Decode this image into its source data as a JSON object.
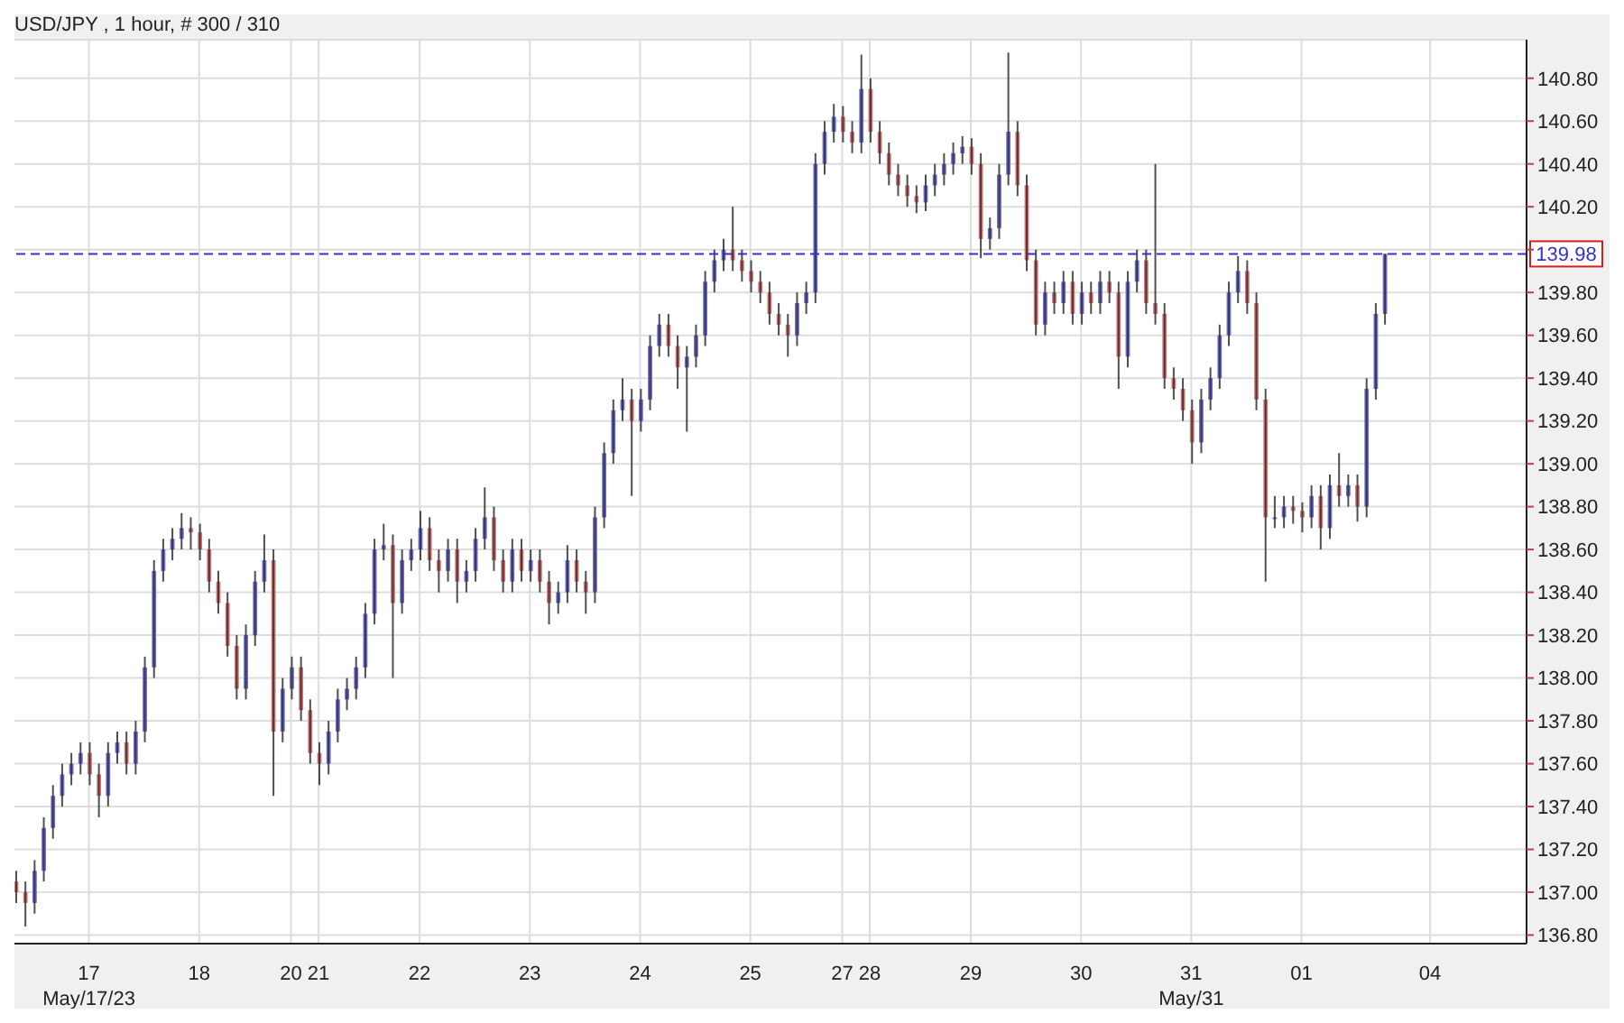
{
  "chart_data": {
    "type": "candlestick",
    "title": "USD/JPY , 1 hour, # 300 / 310",
    "categories": [
      null,
      null,
      null,
      null,
      null,
      null,
      null,
      null,
      "17",
      null,
      null,
      null,
      null,
      null,
      null,
      null,
      null,
      null,
      null,
      null,
      "18",
      null,
      null,
      null,
      null,
      null,
      null,
      null,
      null,
      null,
      "20",
      null,
      null,
      "21",
      null,
      null,
      null,
      null,
      null,
      null,
      null,
      null,
      null,
      null,
      "22",
      null,
      null,
      null,
      null,
      null,
      null,
      null,
      null,
      null,
      null,
      null,
      "23",
      null,
      null,
      null,
      null,
      null,
      null,
      null,
      null,
      null,
      null,
      null,
      "24",
      null,
      null,
      null,
      null,
      null,
      null,
      null,
      null,
      null,
      null,
      null,
      "25",
      null,
      null,
      null,
      null,
      null,
      null,
      null,
      null,
      null,
      "27",
      null,
      null,
      "28",
      null,
      null,
      null,
      null,
      null,
      null,
      null,
      null,
      null,
      null,
      "29",
      null,
      null,
      null,
      null,
      null,
      null,
      null,
      null,
      null,
      null,
      null,
      "30",
      null,
      null,
      null,
      null,
      null,
      null,
      null,
      null,
      null,
      null,
      null,
      "31",
      null,
      null,
      null,
      null,
      null,
      null,
      null,
      null,
      null,
      null,
      null,
      "01",
      null,
      null,
      null,
      null,
      null,
      null,
      null,
      null,
      null,
      null,
      null,
      null,
      null,
      "04",
      null,
      null,
      null,
      null,
      null,
      null,
      null,
      null,
      null,
      null
    ],
    "ohlc": [
      [
        137.05,
        137.1,
        136.95,
        137.0
      ],
      [
        137.0,
        137.05,
        136.84,
        136.95
      ],
      [
        136.95,
        137.15,
        136.9,
        137.1
      ],
      [
        137.1,
        137.35,
        137.05,
        137.3
      ],
      [
        137.3,
        137.5,
        137.25,
        137.45
      ],
      [
        137.45,
        137.6,
        137.4,
        137.55
      ],
      [
        137.55,
        137.65,
        137.5,
        137.6
      ],
      [
        137.6,
        137.7,
        137.55,
        137.65
      ],
      [
        137.65,
        137.7,
        137.5,
        137.55
      ],
      [
        137.55,
        137.6,
        137.35,
        137.45
      ],
      [
        137.45,
        137.7,
        137.4,
        137.65
      ],
      [
        137.65,
        137.75,
        137.6,
        137.7
      ],
      [
        137.7,
        137.75,
        137.55,
        137.6
      ],
      [
        137.6,
        137.8,
        137.55,
        137.75
      ],
      [
        137.75,
        138.1,
        137.7,
        138.05
      ],
      [
        138.05,
        138.55,
        138.0,
        138.5
      ],
      [
        138.5,
        138.65,
        138.45,
        138.6
      ],
      [
        138.6,
        138.7,
        138.55,
        138.65
      ],
      [
        138.65,
        138.77,
        138.6,
        138.7
      ],
      [
        138.7,
        138.75,
        138.6,
        138.68
      ],
      [
        138.68,
        138.72,
        138.55,
        138.6
      ],
      [
        138.6,
        138.65,
        138.4,
        138.45
      ],
      [
        138.45,
        138.5,
        138.3,
        138.35
      ],
      [
        138.35,
        138.4,
        138.1,
        138.15
      ],
      [
        138.15,
        138.2,
        137.9,
        137.95
      ],
      [
        137.95,
        138.25,
        137.9,
        138.2
      ],
      [
        138.2,
        138.5,
        138.15,
        138.45
      ],
      [
        138.45,
        138.67,
        138.4,
        138.55
      ],
      [
        138.55,
        138.6,
        137.45,
        137.75
      ],
      [
        137.75,
        138.0,
        137.7,
        137.95
      ],
      [
        137.95,
        138.1,
        137.9,
        138.05
      ],
      [
        138.05,
        138.1,
        137.8,
        137.85
      ],
      [
        137.85,
        137.9,
        137.6,
        137.65
      ],
      [
        137.65,
        137.7,
        137.5,
        137.6
      ],
      [
        137.6,
        137.8,
        137.55,
        137.75
      ],
      [
        137.75,
        137.95,
        137.7,
        137.9
      ],
      [
        137.9,
        138.0,
        137.85,
        137.95
      ],
      [
        137.95,
        138.1,
        137.9,
        138.05
      ],
      [
        138.05,
        138.35,
        138.0,
        138.3
      ],
      [
        138.3,
        138.65,
        138.25,
        138.6
      ],
      [
        138.6,
        138.72,
        138.55,
        138.62
      ],
      [
        138.62,
        138.67,
        138.0,
        138.35
      ],
      [
        138.35,
        138.6,
        138.3,
        138.55
      ],
      [
        138.55,
        138.65,
        138.5,
        138.6
      ],
      [
        138.6,
        138.78,
        138.55,
        138.7
      ],
      [
        138.7,
        138.75,
        138.5,
        138.55
      ],
      [
        138.55,
        138.6,
        138.4,
        138.5
      ],
      [
        138.5,
        138.65,
        138.45,
        138.6
      ],
      [
        138.6,
        138.65,
        138.35,
        138.45
      ],
      [
        138.45,
        138.55,
        138.4,
        138.5
      ],
      [
        138.5,
        138.7,
        138.45,
        138.65
      ],
      [
        138.65,
        138.89,
        138.6,
        138.75
      ],
      [
        138.75,
        138.8,
        138.5,
        138.55
      ],
      [
        138.55,
        138.6,
        138.4,
        138.45
      ],
      [
        138.45,
        138.65,
        138.4,
        138.6
      ],
      [
        138.6,
        138.65,
        138.45,
        138.5
      ],
      [
        138.5,
        138.6,
        138.45,
        138.55
      ],
      [
        138.55,
        138.6,
        138.4,
        138.45
      ],
      [
        138.45,
        138.5,
        138.25,
        138.35
      ],
      [
        138.35,
        138.45,
        138.3,
        138.4
      ],
      [
        138.4,
        138.62,
        138.35,
        138.55
      ],
      [
        138.55,
        138.6,
        138.4,
        138.45
      ],
      [
        138.45,
        138.5,
        138.3,
        138.4
      ],
      [
        138.4,
        138.8,
        138.35,
        138.75
      ],
      [
        138.75,
        139.1,
        138.7,
        139.05
      ],
      [
        139.05,
        139.3,
        139.0,
        139.25
      ],
      [
        139.25,
        139.4,
        139.2,
        139.3
      ],
      [
        139.3,
        139.35,
        138.85,
        139.2
      ],
      [
        139.2,
        139.35,
        139.15,
        139.3
      ],
      [
        139.3,
        139.6,
        139.25,
        139.55
      ],
      [
        139.55,
        139.7,
        139.5,
        139.65
      ],
      [
        139.65,
        139.7,
        139.5,
        139.55
      ],
      [
        139.55,
        139.6,
        139.35,
        139.45
      ],
      [
        139.45,
        139.55,
        139.15,
        139.5
      ],
      [
        139.5,
        139.65,
        139.45,
        139.6
      ],
      [
        139.6,
        139.9,
        139.55,
        139.85
      ],
      [
        139.85,
        140.0,
        139.8,
        139.95
      ],
      [
        139.95,
        140.05,
        139.9,
        140.0
      ],
      [
        140.0,
        140.2,
        139.9,
        139.95
      ],
      [
        139.95,
        140.0,
        139.85,
        139.9
      ],
      [
        139.9,
        139.95,
        139.8,
        139.85
      ],
      [
        139.85,
        139.9,
        139.75,
        139.8
      ],
      [
        139.8,
        139.85,
        139.65,
        139.7
      ],
      [
        139.7,
        139.75,
        139.6,
        139.65
      ],
      [
        139.65,
        139.7,
        139.5,
        139.6
      ],
      [
        139.6,
        139.8,
        139.55,
        139.75
      ],
      [
        139.75,
        139.85,
        139.7,
        139.8
      ],
      [
        139.8,
        140.45,
        139.75,
        140.4
      ],
      [
        140.4,
        140.6,
        140.35,
        140.55
      ],
      [
        140.55,
        140.68,
        140.5,
        140.62
      ],
      [
        140.62,
        140.67,
        140.5,
        140.55
      ],
      [
        140.55,
        140.6,
        140.45,
        140.5
      ],
      [
        140.5,
        140.91,
        140.45,
        140.75
      ],
      [
        140.75,
        140.8,
        140.5,
        140.55
      ],
      [
        140.55,
        140.6,
        140.4,
        140.45
      ],
      [
        140.45,
        140.5,
        140.3,
        140.35
      ],
      [
        140.35,
        140.4,
        140.25,
        140.3
      ],
      [
        140.3,
        140.35,
        140.2,
        140.25
      ],
      [
        140.25,
        140.3,
        140.17,
        140.22
      ],
      [
        140.22,
        140.35,
        140.18,
        140.3
      ],
      [
        140.3,
        140.4,
        140.25,
        140.35
      ],
      [
        140.35,
        140.45,
        140.3,
        140.4
      ],
      [
        140.4,
        140.5,
        140.35,
        140.45
      ],
      [
        140.45,
        140.53,
        140.4,
        140.48
      ],
      [
        140.48,
        140.52,
        140.35,
        140.4
      ],
      [
        140.4,
        140.45,
        139.96,
        140.05
      ],
      [
        140.05,
        140.15,
        140.0,
        140.1
      ],
      [
        140.1,
        140.4,
        140.05,
        140.35
      ],
      [
        140.35,
        140.92,
        140.3,
        140.55
      ],
      [
        140.55,
        140.6,
        140.25,
        140.3
      ],
      [
        140.3,
        140.35,
        139.9,
        139.95
      ],
      [
        139.95,
        140.0,
        139.6,
        139.65
      ],
      [
        139.65,
        139.85,
        139.6,
        139.8
      ],
      [
        139.8,
        139.85,
        139.7,
        139.75
      ],
      [
        139.75,
        139.9,
        139.7,
        139.85
      ],
      [
        139.85,
        139.9,
        139.65,
        139.7
      ],
      [
        139.7,
        139.85,
        139.65,
        139.8
      ],
      [
        139.8,
        139.85,
        139.7,
        139.75
      ],
      [
        139.75,
        139.9,
        139.7,
        139.85
      ],
      [
        139.85,
        139.9,
        139.75,
        139.8
      ],
      [
        139.8,
        139.85,
        139.35,
        139.5
      ],
      [
        139.5,
        139.9,
        139.45,
        139.85
      ],
      [
        139.85,
        140.0,
        139.8,
        139.95
      ],
      [
        139.95,
        140.0,
        139.7,
        139.75
      ],
      [
        139.75,
        140.4,
        139.65,
        139.7
      ],
      [
        139.7,
        139.75,
        139.35,
        139.4
      ],
      [
        139.4,
        139.45,
        139.3,
        139.35
      ],
      [
        139.35,
        139.4,
        139.2,
        139.25
      ],
      [
        139.25,
        139.3,
        139.0,
        139.1
      ],
      [
        139.1,
        139.35,
        139.05,
        139.3
      ],
      [
        139.3,
        139.45,
        139.25,
        139.4
      ],
      [
        139.4,
        139.65,
        139.35,
        139.6
      ],
      [
        139.6,
        139.85,
        139.55,
        139.8
      ],
      [
        139.8,
        139.97,
        139.75,
        139.9
      ],
      [
        139.9,
        139.95,
        139.7,
        139.75
      ],
      [
        139.75,
        139.8,
        139.25,
        139.3
      ],
      [
        139.3,
        139.35,
        138.45,
        138.75
      ],
      [
        138.75,
        138.85,
        138.7,
        138.75
      ],
      [
        138.75,
        138.85,
        138.7,
        138.8
      ],
      [
        138.8,
        138.85,
        138.72,
        138.78
      ],
      [
        138.78,
        138.82,
        138.68,
        138.75
      ],
      [
        138.75,
        138.9,
        138.7,
        138.85
      ],
      [
        138.85,
        138.9,
        138.6,
        138.7
      ],
      [
        138.7,
        138.95,
        138.65,
        138.9
      ],
      [
        138.9,
        139.05,
        138.8,
        138.85
      ],
      [
        138.85,
        138.95,
        138.8,
        138.9
      ],
      [
        138.9,
        138.95,
        138.73,
        138.8
      ],
      [
        138.8,
        139.4,
        138.75,
        139.35
      ],
      [
        139.35,
        139.75,
        139.3,
        139.7
      ],
      [
        139.7,
        139.98,
        139.65,
        139.98
      ],
      null,
      null,
      null,
      null,
      null,
      null,
      null,
      null,
      null,
      null,
      null,
      null,
      null,
      null,
      null
    ],
    "color": "#303030",
    "colors": [
      "#d87272",
      "#d87272",
      "#6a6ad6",
      "#6a6ad6",
      "#6a6ad6",
      "#6a6ad6",
      "#6a6ad6",
      "#6a6ad6",
      "#d87272",
      "#d87272",
      "#6a6ad6",
      "#6a6ad6",
      "#d87272",
      "#6a6ad6",
      "#6a6ad6",
      "#6a6ad6",
      "#6a6ad6",
      "#6a6ad6",
      "#6a6ad6",
      "#d87272",
      "#d87272",
      "#d87272",
      "#d87272",
      "#d87272",
      "#d87272",
      "#6a6ad6",
      "#6a6ad6",
      "#6a6ad6",
      "#d87272",
      "#6a6ad6",
      "#6a6ad6",
      "#d87272",
      "#d87272",
      "#d87272",
      "#6a6ad6",
      "#6a6ad6",
      "#6a6ad6",
      "#6a6ad6",
      "#6a6ad6",
      "#6a6ad6",
      "#6a6ad6",
      "#d87272",
      "#6a6ad6",
      "#6a6ad6",
      "#6a6ad6",
      "#d87272",
      "#d87272",
      "#6a6ad6",
      "#d87272",
      "#6a6ad6",
      "#6a6ad6",
      "#6a6ad6",
      "#d87272",
      "#d87272",
      "#6a6ad6",
      "#d87272",
      "#6a6ad6",
      "#d87272",
      "#d87272",
      "#6a6ad6",
      "#6a6ad6",
      "#d87272",
      "#d87272",
      "#6a6ad6",
      "#6a6ad6",
      "#6a6ad6",
      "#6a6ad6",
      "#d87272",
      "#6a6ad6",
      "#6a6ad6",
      "#6a6ad6",
      "#d87272",
      "#d87272",
      "#6a6ad6",
      "#6a6ad6",
      "#6a6ad6",
      "#6a6ad6",
      "#6a6ad6",
      "#d87272",
      "#d87272",
      "#d87272",
      "#d87272",
      "#d87272",
      "#d87272",
      "#d87272",
      "#6a6ad6",
      "#6a6ad6",
      "#6a6ad6",
      "#6a6ad6",
      "#6a6ad6",
      "#d87272",
      "#d87272",
      "#6a6ad6",
      "#d87272",
      "#d87272",
      "#d87272",
      "#d87272",
      "#d87272",
      "#d87272",
      "#6a6ad6",
      "#6a6ad6",
      "#6a6ad6",
      "#6a6ad6",
      "#6a6ad6",
      "#d87272",
      "#d87272",
      "#6a6ad6",
      "#6a6ad6",
      "#6a6ad6",
      "#d87272",
      "#d87272",
      "#d87272",
      "#6a6ad6",
      "#d87272",
      "#6a6ad6",
      "#d87272",
      "#6a6ad6",
      "#d87272",
      "#6a6ad6",
      "#d87272",
      "#d87272",
      "#6a6ad6",
      "#6a6ad6",
      "#d87272",
      "#d87272",
      "#d87272",
      "#d87272",
      "#d87272",
      "#d87272",
      "#6a6ad6",
      "#6a6ad6",
      "#6a6ad6",
      "#6a6ad6",
      "#6a6ad6",
      "#d87272",
      "#d87272",
      "#d87272",
      "#6a6ad6",
      "#6a6ad6",
      "#d87272",
      "#d87272",
      "#6a6ad6",
      "#d87272",
      "#6a6ad6",
      "#d87272",
      "#6a6ad6",
      "#d87272",
      "#6a6ad6",
      "#6a6ad6",
      "#6a6ad6",
      null,
      null,
      null,
      null,
      null,
      null,
      null,
      null,
      null,
      null,
      null,
      null,
      null,
      null,
      null
    ],
    "ylim": [
      136.76,
      140.98
    ],
    "yticks": [
      {
        "value": 136.8,
        "label": "136.80"
      },
      {
        "value": 137,
        "label": "137.00"
      },
      {
        "value": 137.2,
        "label": "137.20"
      },
      {
        "value": 137.4,
        "label": "137.40"
      },
      {
        "value": 137.6,
        "label": "137.60"
      },
      {
        "value": 137.8,
        "label": "137.80"
      },
      {
        "value": 138,
        "label": "138.00"
      },
      {
        "value": 138.2,
        "label": "138.20"
      },
      {
        "value": 138.4,
        "label": "138.40"
      },
      {
        "value": 138.6,
        "label": "138.60"
      },
      {
        "value": 138.8,
        "label": "138.80"
      },
      {
        "value": 139,
        "label": "139.00"
      },
      {
        "value": 139.2,
        "label": "139.20"
      },
      {
        "value": 139.4,
        "label": "139.40"
      },
      {
        "value": 139.6,
        "label": "139.60"
      },
      {
        "value": 139.8,
        "label": "139.80"
      },
      {
        "value": 140,
        "label": null
      },
      {
        "value": 140.2,
        "label": "140.20"
      },
      {
        "value": 140.4,
        "label": "140.40"
      },
      {
        "value": 140.6,
        "label": "140.60"
      },
      {
        "value": 140.8,
        "label": "140.80"
      }
    ],
    "ref_lines": [
      {
        "axis": "y",
        "value": 139.98,
        "label": "139.98",
        "color": "#3333cc",
        "line_style": "dashed"
      }
    ],
    "annotations": [
      "May/17/23",
      "May/31"
    ],
    "grid": true
  }
}
